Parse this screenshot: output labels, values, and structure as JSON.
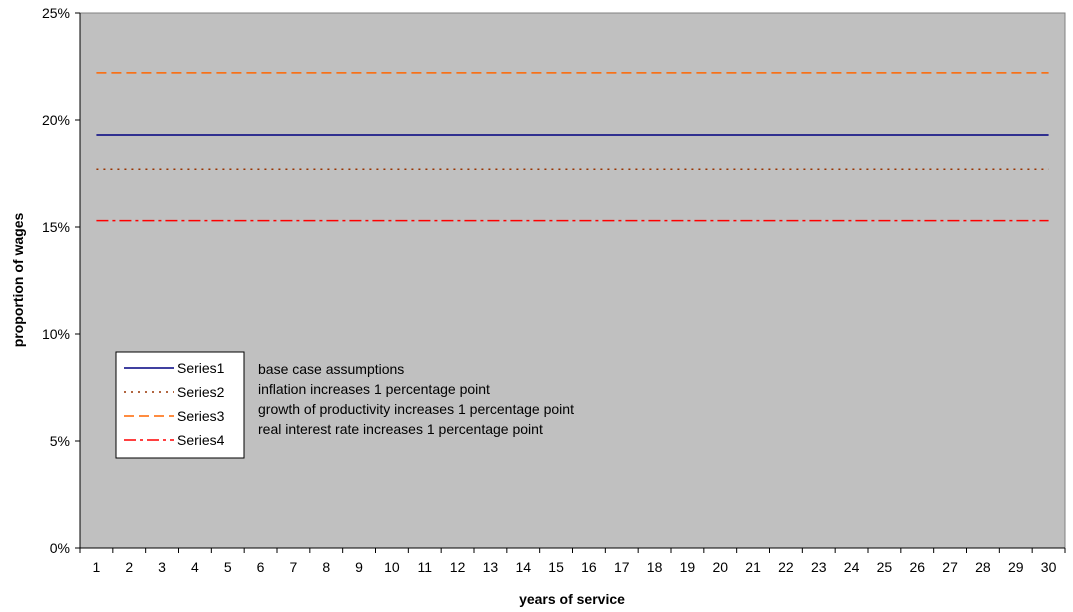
{
  "chart_data": {
    "type": "line",
    "title": "",
    "xlabel": "years of service",
    "ylabel": "proportion of wages",
    "x": [
      1,
      2,
      3,
      4,
      5,
      6,
      7,
      8,
      9,
      10,
      11,
      12,
      13,
      14,
      15,
      16,
      17,
      18,
      19,
      20,
      21,
      22,
      23,
      24,
      25,
      26,
      27,
      28,
      29,
      30
    ],
    "ylim": [
      0,
      25
    ],
    "y_ticks": [
      "0%",
      "5%",
      "10%",
      "15%",
      "20%",
      "25%"
    ],
    "grid": false,
    "legend_position": "lower-left",
    "series": [
      {
        "name": "Series1",
        "color": "#000080",
        "style": "solid",
        "values": [
          19.3,
          19.3,
          19.3,
          19.3,
          19.3,
          19.3,
          19.3,
          19.3,
          19.3,
          19.3,
          19.3,
          19.3,
          19.3,
          19.3,
          19.3,
          19.3,
          19.3,
          19.3,
          19.3,
          19.3,
          19.3,
          19.3,
          19.3,
          19.3,
          19.3,
          19.3,
          19.3,
          19.3,
          19.3,
          19.3
        ]
      },
      {
        "name": "Series2",
        "color": "#993300",
        "style": "dotted",
        "values": [
          17.7,
          17.7,
          17.7,
          17.7,
          17.7,
          17.7,
          17.7,
          17.7,
          17.7,
          17.7,
          17.7,
          17.7,
          17.7,
          17.7,
          17.7,
          17.7,
          17.7,
          17.7,
          17.7,
          17.7,
          17.7,
          17.7,
          17.7,
          17.7,
          17.7,
          17.7,
          17.7,
          17.7,
          17.7,
          17.7
        ]
      },
      {
        "name": "Series3",
        "color": "#FF6600",
        "style": "dashed",
        "values": [
          22.2,
          22.2,
          22.2,
          22.2,
          22.2,
          22.2,
          22.2,
          22.2,
          22.2,
          22.2,
          22.2,
          22.2,
          22.2,
          22.2,
          22.2,
          22.2,
          22.2,
          22.2,
          22.2,
          22.2,
          22.2,
          22.2,
          22.2,
          22.2,
          22.2,
          22.2,
          22.2,
          22.2,
          22.2,
          22.2
        ]
      },
      {
        "name": "Series4",
        "color": "#FF0000",
        "style": "dash-dot",
        "values": [
          15.3,
          15.3,
          15.3,
          15.3,
          15.3,
          15.3,
          15.3,
          15.3,
          15.3,
          15.3,
          15.3,
          15.3,
          15.3,
          15.3,
          15.3,
          15.3,
          15.3,
          15.3,
          15.3,
          15.3,
          15.3,
          15.3,
          15.3,
          15.3,
          15.3,
          15.3,
          15.3,
          15.3,
          15.3,
          15.3
        ]
      }
    ],
    "annotations": [
      "base case assumptions",
      "inflation increases 1 percentage point",
      "growth of productivity increases 1 percentage point",
      "real interest rate increases 1 percentage point"
    ],
    "plot_background": "#C0C0C0"
  }
}
